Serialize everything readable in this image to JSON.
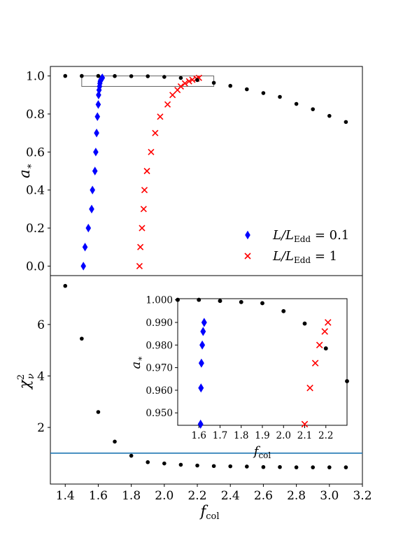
{
  "chart_data": [
    {
      "type": "scatter",
      "panel": "top",
      "ylabel": "a_*",
      "xlim": [
        1.31,
        3.2
      ],
      "ylim": [
        -0.05,
        1.05
      ],
      "y_ticks": [
        "0.0",
        "0.2",
        "0.4",
        "0.6",
        "0.8",
        "1.0"
      ],
      "grid": false,
      "legend_position": "lower-right",
      "series": [
        {
          "name": "L/L_Edd = 0.1",
          "legend_base": "L/L",
          "legend_sub": "Edd",
          "legend_rest": " = 0.1",
          "marker": "thin_diamond",
          "color": "#0000ff",
          "points": [
            [
              1.51,
              0.0
            ],
            [
              1.52,
              0.1
            ],
            [
              1.54,
              0.2
            ],
            [
              1.56,
              0.3
            ],
            [
              1.565,
              0.4
            ],
            [
              1.58,
              0.5
            ],
            [
              1.585,
              0.6
            ],
            [
              1.59,
              0.7
            ],
            [
              1.595,
              0.786
            ],
            [
              1.6,
              0.85
            ],
            [
              1.602,
              0.9
            ],
            [
              1.605,
              0.926
            ],
            [
              1.608,
              0.945
            ],
            [
              1.61,
              0.961
            ],
            [
              1.612,
              0.972
            ],
            [
              1.616,
              0.98
            ],
            [
              1.62,
              0.986
            ],
            [
              1.625,
              0.99
            ]
          ]
        },
        {
          "name": "L/L_Edd = 1",
          "legend_base": "L/L",
          "legend_sub": "Edd",
          "legend_rest": " = 1",
          "marker": "x",
          "color": "#ff0000",
          "points": [
            [
              1.85,
              0.0
            ],
            [
              1.855,
              0.1
            ],
            [
              1.865,
              0.2
            ],
            [
              1.875,
              0.3
            ],
            [
              1.88,
              0.4
            ],
            [
              1.895,
              0.5
            ],
            [
              1.92,
              0.6
            ],
            [
              1.945,
              0.7
            ],
            [
              1.975,
              0.786
            ],
            [
              2.02,
              0.85
            ],
            [
              2.05,
              0.9
            ],
            [
              2.08,
              0.926
            ],
            [
              2.1,
              0.945
            ],
            [
              2.125,
              0.961
            ],
            [
              2.15,
              0.972
            ],
            [
              2.17,
              0.98
            ],
            [
              2.195,
              0.986
            ],
            [
              2.21,
              0.99
            ]
          ]
        },
        {
          "name": "",
          "marker": "dot",
          "color": "#000000",
          "points": [
            [
              1.4,
              1.0
            ],
            [
              1.5,
              1.0
            ],
            [
              1.6,
              1.0
            ],
            [
              1.7,
              0.9995
            ],
            [
              1.8,
              0.999
            ],
            [
              1.9,
              0.9985
            ],
            [
              2.0,
              0.995
            ],
            [
              2.1,
              0.9895
            ],
            [
              2.2,
              0.9785
            ],
            [
              2.3,
              0.964
            ],
            [
              2.4,
              0.948
            ],
            [
              2.5,
              0.93
            ],
            [
              2.6,
              0.91
            ],
            [
              2.7,
              0.89
            ],
            [
              2.8,
              0.853
            ],
            [
              2.9,
              0.825
            ],
            [
              3.0,
              0.79
            ],
            [
              3.1,
              0.758
            ]
          ]
        }
      ],
      "zoom_box": {
        "x": [
          1.5,
          2.3
        ],
        "y": [
          0.945,
          1.0
        ]
      }
    },
    {
      "type": "scatter",
      "panel": "bottom",
      "xlabel": "f_col",
      "ylabel": "χ²_ν",
      "xlim": [
        1.31,
        3.2
      ],
      "ylim": [
        -0.2,
        7.9
      ],
      "x_ticks": [
        "1.4",
        "1.6",
        "1.8",
        "2.0",
        "2.2",
        "2.4",
        "2.6",
        "2.8",
        "3.0",
        "3.2"
      ],
      "y_ticks": [
        "2",
        "4",
        "6"
      ],
      "grid": false,
      "reference_line": {
        "y": 1.0,
        "color": "#1f77b4"
      },
      "series": [
        {
          "name": "",
          "marker": "dot",
          "color": "#000000",
          "points": [
            [
              1.4,
              7.5
            ],
            [
              1.5,
              5.45
            ],
            [
              1.6,
              2.6
            ],
            [
              1.7,
              1.45
            ],
            [
              1.8,
              0.9
            ],
            [
              1.9,
              0.65
            ],
            [
              2.0,
              0.6
            ],
            [
              2.1,
              0.55
            ],
            [
              2.2,
              0.52
            ],
            [
              2.3,
              0.5
            ],
            [
              2.4,
              0.49
            ],
            [
              2.5,
              0.48
            ],
            [
              2.6,
              0.46
            ],
            [
              2.7,
              0.46
            ],
            [
              2.8,
              0.45
            ],
            [
              2.9,
              0.45
            ],
            [
              3.0,
              0.45
            ],
            [
              3.1,
              0.45
            ]
          ]
        }
      ]
    },
    {
      "type": "scatter",
      "panel": "inset",
      "xlabel": "f_col",
      "ylabel": "a_*",
      "xlim": [
        1.5,
        2.3
      ],
      "ylim": [
        0.9445,
        1.0005
      ],
      "x_ticks": [
        "1.6",
        "1.7",
        "1.8",
        "1.9",
        "2.0",
        "2.1",
        "2.2"
      ],
      "y_ticks": [
        "0.950",
        "0.960",
        "0.970",
        "0.980",
        "0.990",
        "1.000"
      ],
      "grid": false
    }
  ]
}
